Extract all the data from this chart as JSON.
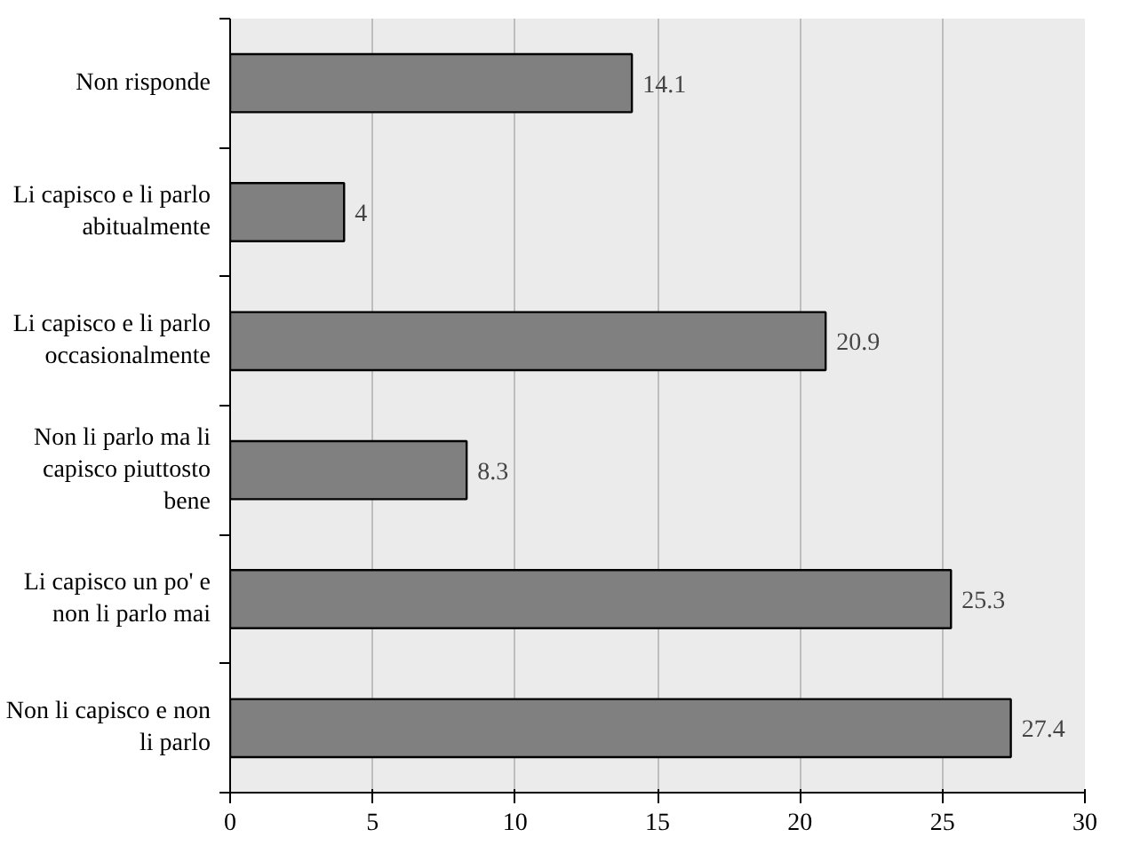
{
  "chart_data": {
    "type": "bar",
    "orientation": "horizontal",
    "categories": [
      "Non risponde",
      "Li capisco e li parlo abitualmente",
      "Li capisco e li parlo occasionalmente",
      "Non li parlo ma li capisco piuttosto bene",
      "Li capisco un po' e non li parlo mai",
      "Non li capisco e non li parlo"
    ],
    "values": [
      14.1,
      4,
      20.9,
      8.3,
      25.3,
      27.4
    ],
    "color": "#808080",
    "xlim": [
      0,
      30
    ],
    "xticks": [
      0,
      5,
      10,
      15,
      20,
      25,
      30
    ],
    "grid": "x",
    "data_labels": true
  }
}
